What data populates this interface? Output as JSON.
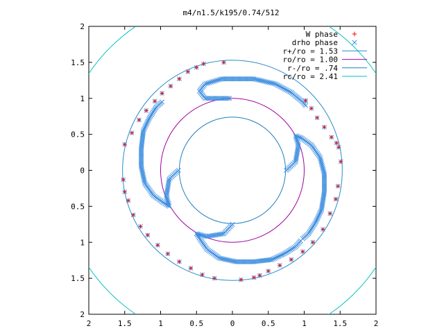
{
  "chart_data": {
    "type": "scatter",
    "title": "m4/n1.5/k195/0.74/512",
    "xlabel": "",
    "ylabel": "",
    "xlim": [
      -2,
      2
    ],
    "ylim": [
      -2,
      2
    ],
    "x_ticks": [
      -2,
      -1.5,
      -1,
      -0.5,
      0,
      0.5,
      1,
      1.5,
      2
    ],
    "y_ticks": [
      -2,
      -1.5,
      -1,
      -0.5,
      0,
      0.5,
      1,
      1.5,
      2
    ],
    "x_tick_labels": [
      "2",
      "1.5",
      "1",
      "0.5",
      "0",
      "0.5",
      "1",
      "1.5",
      "2"
    ],
    "y_tick_labels": [
      "2",
      "1.5",
      "1",
      "0.5",
      "0",
      "0.5",
      "1",
      "1.5",
      "2"
    ],
    "grid": false,
    "legend_position": "top-right",
    "series": [
      {
        "name": "W phase",
        "marker": "plus",
        "color": "#ff0000",
        "arms": [
          [
            [
              1.02,
              0.97
            ],
            [
              1.1,
              0.86
            ],
            [
              1.18,
              0.73
            ],
            [
              1.28,
              0.6
            ],
            [
              1.38,
              0.46
            ],
            [
              1.45,
              0.38
            ],
            [
              1.48,
              0.32
            ],
            [
              1.51,
              0.12
            ]
          ],
          [
            [
              1.47,
              -0.22
            ],
            [
              1.44,
              -0.4
            ],
            [
              1.36,
              -0.6
            ],
            [
              1.26,
              -0.82
            ],
            [
              1.12,
              -1.0
            ],
            [
              0.98,
              -1.13
            ],
            [
              0.82,
              -1.24
            ],
            [
              0.66,
              -1.32
            ],
            [
              0.5,
              -1.4
            ],
            [
              0.38,
              -1.46
            ],
            [
              0.3,
              -1.49
            ],
            [
              0.12,
              -1.52
            ]
          ],
          [
            [
              -0.25,
              -1.5
            ],
            [
              -0.42,
              -1.45
            ],
            [
              -0.58,
              -1.36
            ],
            [
              -0.74,
              -1.27
            ],
            [
              -0.9,
              -1.16
            ],
            [
              -1.04,
              -1.04
            ],
            [
              -1.18,
              -0.9
            ],
            [
              -1.28,
              -0.78
            ],
            [
              -1.38,
              -0.62
            ],
            [
              -1.45,
              -0.42
            ],
            [
              -1.5,
              -0.3
            ],
            [
              -1.52,
              -0.13
            ]
          ],
          [
            [
              -1.5,
              0.36
            ],
            [
              -1.4,
              0.52
            ],
            [
              -1.3,
              0.7
            ],
            [
              -1.2,
              0.83
            ],
            [
              -1.08,
              0.96
            ],
            [
              -0.98,
              1.07
            ],
            [
              -0.86,
              1.17
            ],
            [
              -0.74,
              1.27
            ],
            [
              -0.62,
              1.37
            ],
            [
              -0.5,
              1.43
            ],
            [
              -0.4,
              1.48
            ],
            [
              -0.12,
              1.5
            ]
          ]
        ]
      },
      {
        "name": "drho phase",
        "marker": "cross",
        "color": "#3f8fe0",
        "arms": [
          [
            [
              -0.04,
              1.0
            ],
            [
              -0.38,
              1.0
            ],
            [
              -0.46,
              1.1
            ],
            [
              -0.38,
              1.2
            ],
            [
              -0.15,
              1.27
            ],
            [
              0.3,
              1.27
            ],
            [
              0.6,
              1.2
            ],
            [
              0.82,
              1.08
            ],
            [
              0.98,
              0.95
            ],
            [
              1.02,
              0.9
            ]
          ],
          [
            [
              0.75,
              0.0
            ],
            [
              0.88,
              0.12
            ],
            [
              0.92,
              0.35
            ],
            [
              0.88,
              0.48
            ],
            [
              0.96,
              0.45
            ],
            [
              1.1,
              0.35
            ],
            [
              1.22,
              0.18
            ],
            [
              1.28,
              -0.05
            ],
            [
              1.28,
              -0.3
            ],
            [
              1.24,
              -0.55
            ],
            [
              1.16,
              -0.72
            ],
            [
              1.06,
              -0.88
            ],
            [
              0.98,
              -0.95
            ]
          ],
          [
            [
              0.0,
              -0.75
            ],
            [
              -0.12,
              -0.88
            ],
            [
              -0.36,
              -0.92
            ],
            [
              -0.5,
              -0.88
            ],
            [
              -0.45,
              -0.96
            ],
            [
              -0.35,
              -1.1
            ],
            [
              -0.18,
              -1.22
            ],
            [
              0.05,
              -1.27
            ],
            [
              0.3,
              -1.27
            ],
            [
              0.55,
              -1.24
            ],
            [
              0.72,
              -1.16
            ],
            [
              0.88,
              -1.06
            ],
            [
              0.95,
              -0.98
            ]
          ],
          [
            [
              -0.75,
              0.0
            ],
            [
              -0.88,
              -0.12
            ],
            [
              -0.92,
              -0.36
            ],
            [
              -0.88,
              -0.5
            ],
            [
              -0.96,
              -0.45
            ],
            [
              -1.1,
              -0.35
            ],
            [
              -1.22,
              -0.18
            ],
            [
              -1.27,
              0.05
            ],
            [
              -1.27,
              0.3
            ],
            [
              -1.24,
              0.55
            ],
            [
              -1.16,
              0.72
            ],
            [
              -1.06,
              0.88
            ],
            [
              -0.98,
              0.95
            ]
          ]
        ]
      }
    ],
    "circles": [
      {
        "name": "r+/ro = 1.53",
        "radius": 1.53,
        "color": "#2b8bc9"
      },
      {
        "name": "ro/ro = 1.00",
        "radius": 1.0,
        "color": "#a000a0"
      },
      {
        "name": "r-/ro = .74",
        "radius": 0.74,
        "color": "#1f7fbf"
      },
      {
        "name": "rc/ro = 2.41",
        "radius": 2.41,
        "color": "#00c0c0"
      }
    ]
  }
}
